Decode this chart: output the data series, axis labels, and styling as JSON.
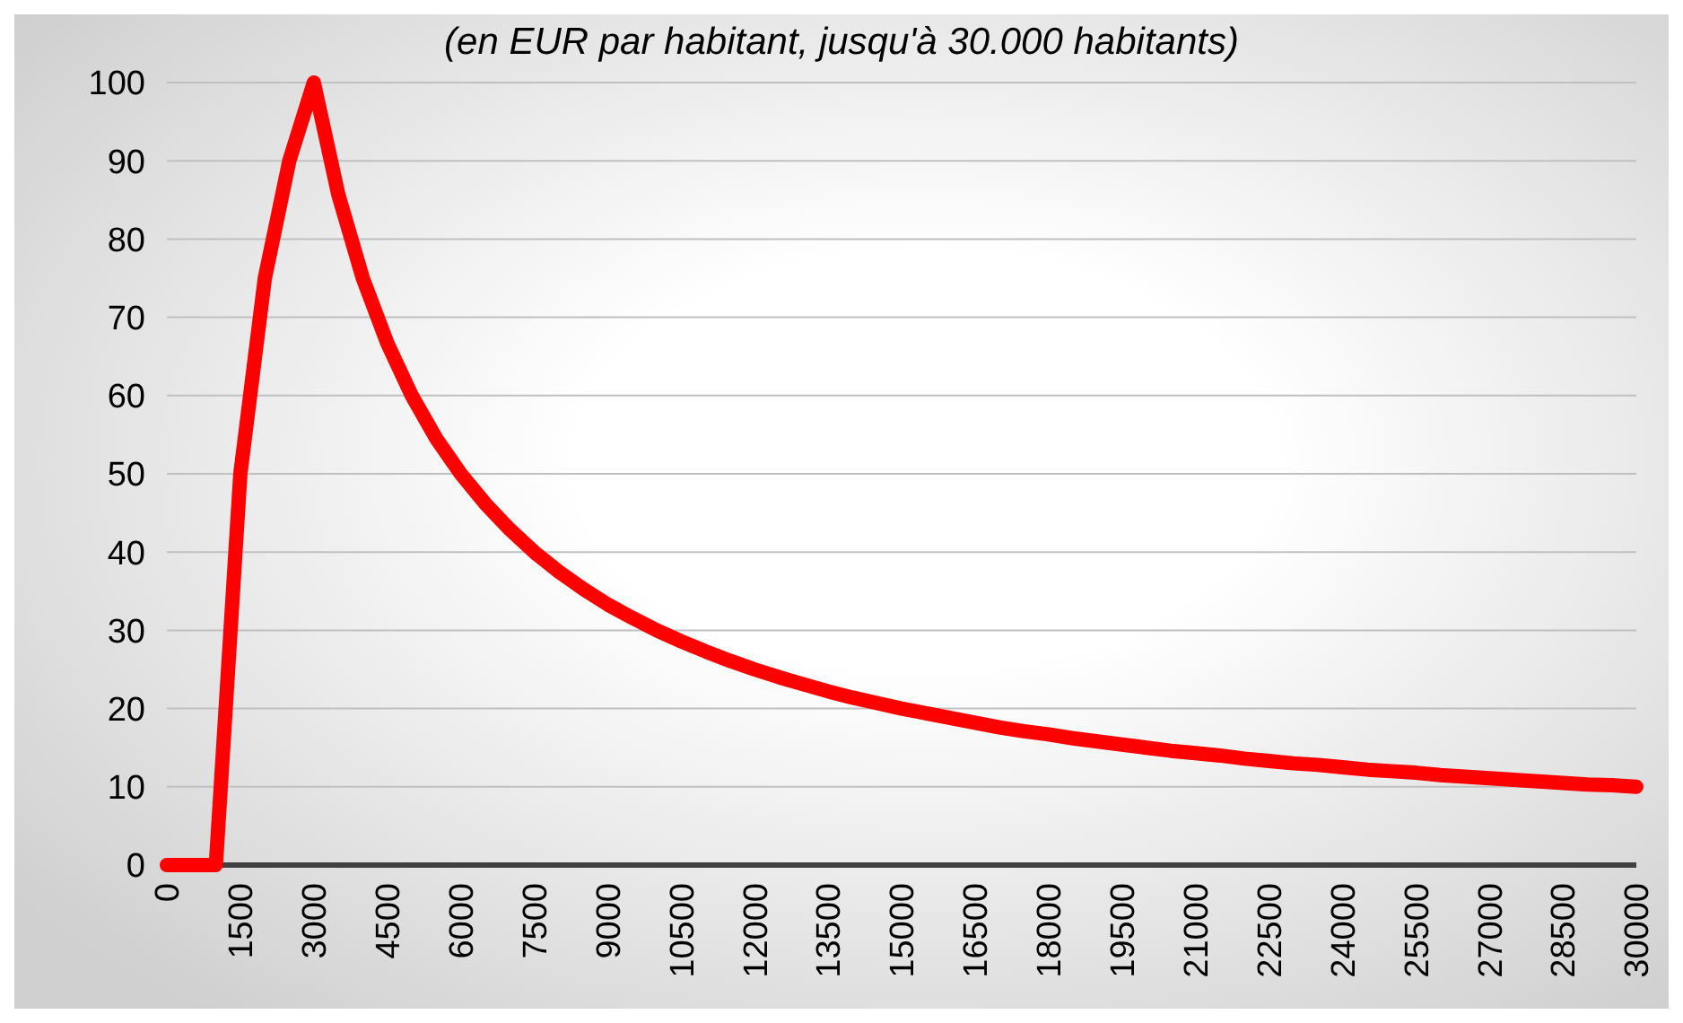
{
  "chart_data": {
    "type": "line",
    "title": "(en EUR par habitant, jusqu'à 30.000 habitants)",
    "x": [
      0,
      500,
      1000,
      1500,
      2000,
      2500,
      3000,
      3500,
      4000,
      4500,
      5000,
      5500,
      6000,
      6500,
      7000,
      7500,
      8000,
      8500,
      9000,
      9500,
      10000,
      10500,
      11000,
      11500,
      12000,
      12500,
      13000,
      13500,
      14000,
      14500,
      15000,
      15500,
      16000,
      16500,
      17000,
      17500,
      18000,
      18500,
      19000,
      19500,
      20000,
      20500,
      21000,
      21500,
      22000,
      22500,
      23000,
      23500,
      24000,
      24500,
      25000,
      25500,
      26000,
      26500,
      27000,
      27500,
      28000,
      28500,
      29000,
      29500,
      30000
    ],
    "series": [
      {
        "color": "#ff0000",
        "values": [
          0,
          0,
          0,
          50,
          75,
          90,
          100,
          85.7,
          75,
          66.7,
          60,
          54.5,
          50,
          46.2,
          42.9,
          40,
          37.5,
          35.3,
          33.3,
          31.6,
          30,
          28.6,
          27.3,
          26.1,
          25,
          24,
          23.1,
          22.2,
          21.4,
          20.7,
          20,
          19.4,
          18.8,
          18.2,
          17.6,
          17.1,
          16.7,
          16.2,
          15.8,
          15.4,
          15,
          14.6,
          14.3,
          14,
          13.6,
          13.3,
          13,
          12.8,
          12.5,
          12.2,
          12,
          11.8,
          11.5,
          11.3,
          11.1,
          10.9,
          10.7,
          10.5,
          10.3,
          10.2,
          10
        ]
      }
    ],
    "xlim": [
      0,
      30000
    ],
    "xticks": [
      0,
      1500,
      3000,
      4500,
      6000,
      7500,
      9000,
      10500,
      12000,
      13500,
      15000,
      16500,
      18000,
      19500,
      21000,
      22500,
      24000,
      25500,
      27000,
      28500,
      30000
    ],
    "ylim": [
      0,
      100
    ],
    "yticks": [
      0,
      10,
      20,
      30,
      40,
      50,
      60,
      70,
      80,
      90,
      100
    ],
    "grid": "y",
    "marker": "none",
    "line_style": "solid"
  }
}
